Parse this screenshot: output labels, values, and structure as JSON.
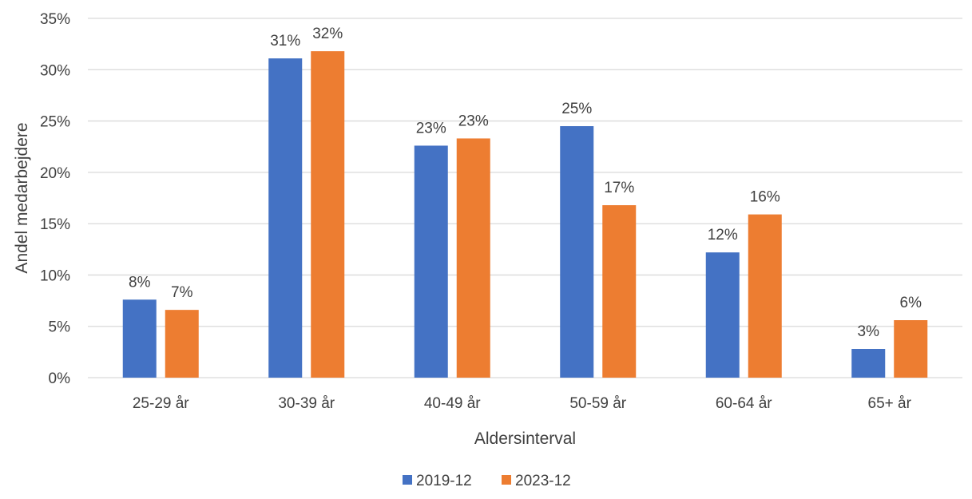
{
  "chart_data": {
    "type": "bar",
    "title": "",
    "xlabel": "Aldersinterval",
    "ylabel": "Andel medarbejdere",
    "categories": [
      "25-29 år",
      "30-39 år",
      "40-49 år",
      "50-59 år",
      "60-64 år",
      "65+ år"
    ],
    "series": [
      {
        "name": "2019-12",
        "color": "#4472C4",
        "values": [
          7.6,
          31.1,
          22.6,
          24.5,
          12.2,
          2.8
        ],
        "labels": [
          "8%",
          "31%",
          "23%",
          "25%",
          "12%",
          "3%"
        ]
      },
      {
        "name": "2023-12",
        "color": "#ED7D31",
        "values": [
          6.6,
          31.8,
          23.3,
          16.8,
          15.9,
          5.6
        ],
        "labels": [
          "7%",
          "32%",
          "23%",
          "17%",
          "16%",
          "6%"
        ]
      }
    ],
    "ylim": [
      0,
      35
    ],
    "yticks": [
      0,
      5,
      10,
      15,
      20,
      25,
      30,
      35
    ],
    "ytick_labels": [
      "0%",
      "5%",
      "10%",
      "15%",
      "20%",
      "25%",
      "30%",
      "35%"
    ],
    "grid": true,
    "legend_position": "bottom"
  }
}
